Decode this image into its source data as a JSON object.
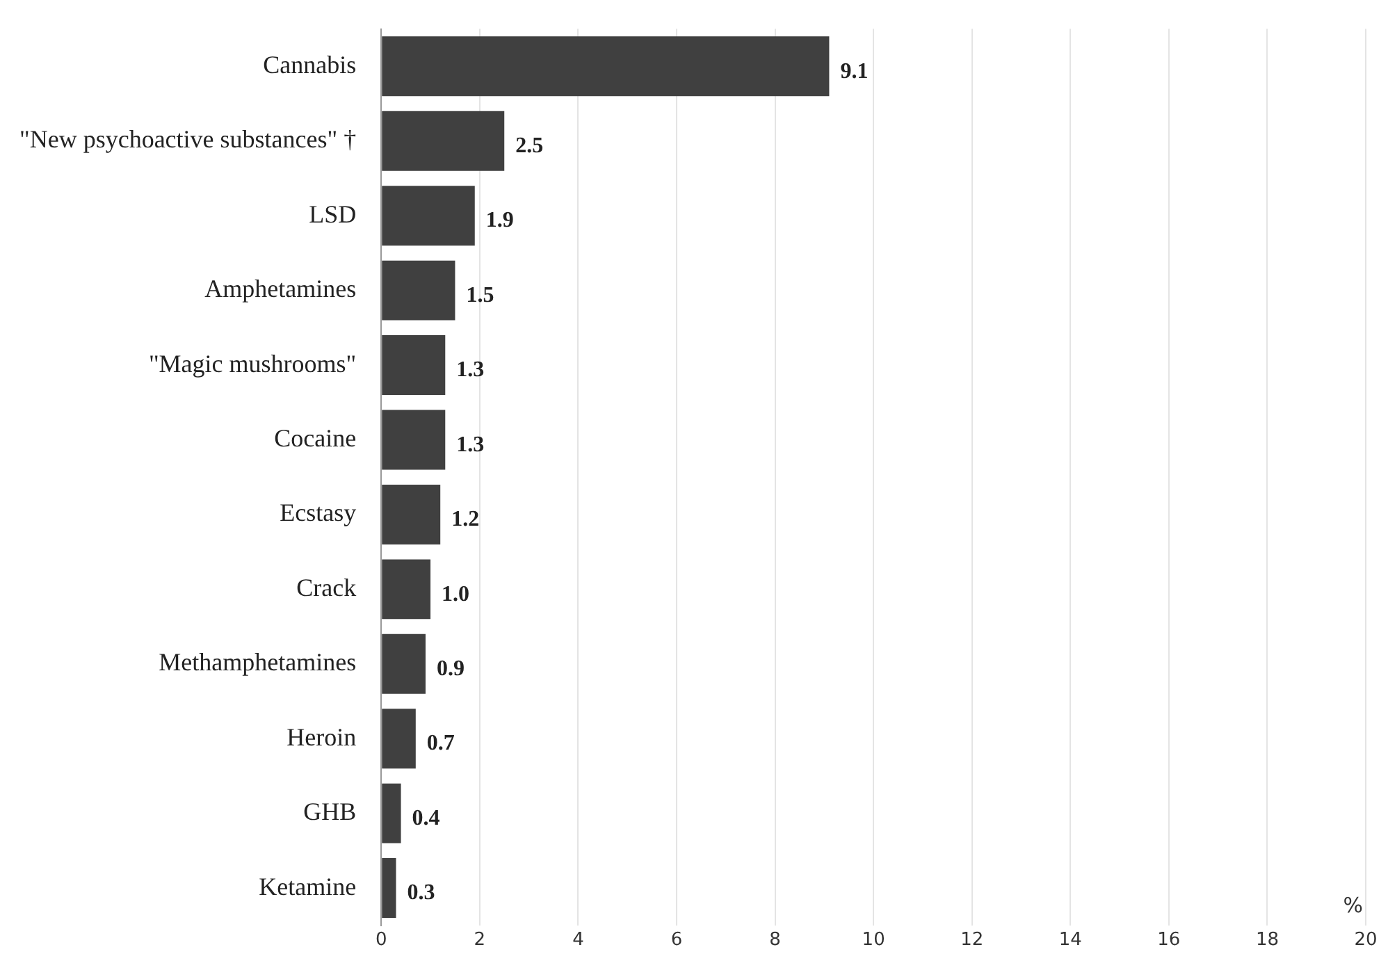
{
  "chart_data": {
    "type": "bar",
    "orientation": "horizontal",
    "xlabel": "%",
    "categories": [
      "Cannabis",
      "\"New psychoactive substances\" †",
      "LSD",
      "Amphetamines",
      "\"Magic mushrooms\"",
      "Cocaine",
      "Ecstasy",
      "Crack",
      "Methamphetamines",
      "Heroin",
      "GHB",
      "Ketamine"
    ],
    "values": [
      9.1,
      2.5,
      1.9,
      1.5,
      1.3,
      1.3,
      1.2,
      1.0,
      0.9,
      0.7,
      0.4,
      0.3
    ],
    "value_labels": [
      "9.1",
      "2.5",
      "1.9",
      "1.5",
      "1.3",
      "1.3",
      "1.2",
      "1.0",
      "0.9",
      "0.7",
      "0.4",
      "0.3"
    ],
    "color": "#404040",
    "xlim": [
      0,
      20
    ],
    "xticks": [
      0,
      2,
      4,
      6,
      8,
      10,
      12,
      14,
      16,
      18,
      20
    ],
    "grid": "x",
    "legend": false
  }
}
